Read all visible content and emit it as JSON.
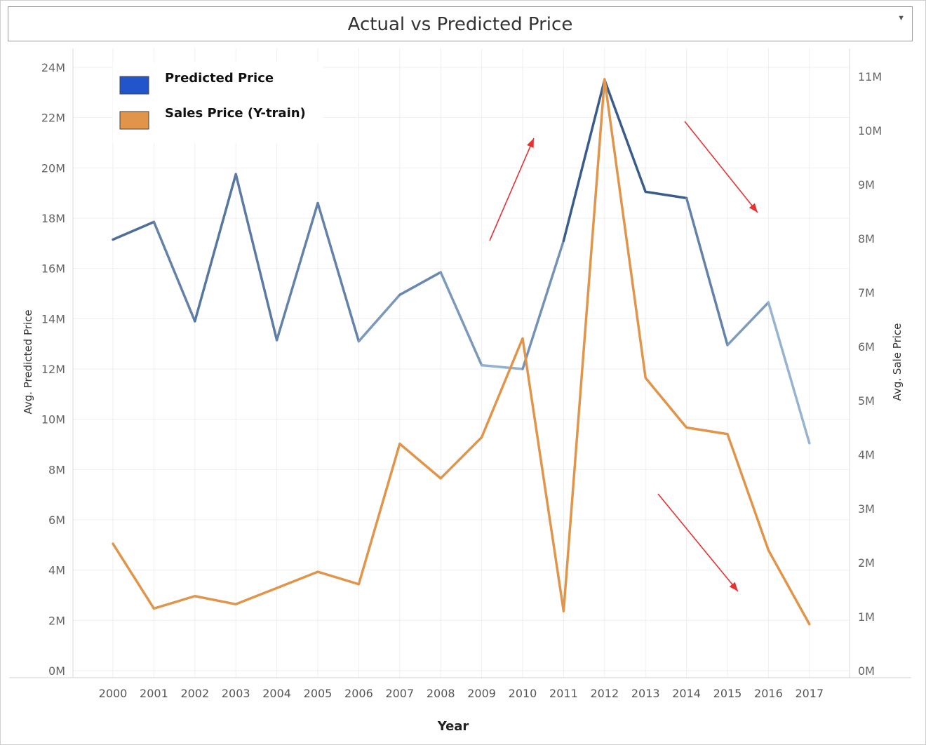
{
  "chart_data": {
    "type": "line",
    "title": "Actual vs Predicted Price",
    "xlabel": "Year",
    "ylabel": "Avg. Predicted Price",
    "y2label": "Avg. Sale Price",
    "categories": [
      "2000",
      "2001",
      "2002",
      "2003",
      "2004",
      "2005",
      "2006",
      "2007",
      "2008",
      "2009",
      "2010",
      "2011",
      "2012",
      "2013",
      "2014",
      "2015",
      "2016",
      "2017"
    ],
    "ylim": [
      0,
      24000000
    ],
    "y2lim": [
      0,
      11000000
    ],
    "yticks": [
      "0M",
      "2M",
      "4M",
      "6M",
      "8M",
      "10M",
      "12M",
      "14M",
      "16M",
      "18M",
      "20M",
      "22M",
      "24M"
    ],
    "y2ticks": [
      "0M",
      "1M",
      "2M",
      "3M",
      "4M",
      "5M",
      "6M",
      "7M",
      "8M",
      "9M",
      "10M",
      "11M"
    ],
    "grid": true,
    "legend_position": "top-left",
    "series": [
      {
        "name": "Predicted Price",
        "axis": "left",
        "color": "#2255cc",
        "values": [
          17150000,
          17850000,
          13900000,
          19750000,
          13150000,
          18600000,
          13100000,
          14950000,
          15850000,
          12150000,
          12000000,
          17100000,
          23500000,
          19050000,
          18800000,
          12950000,
          14650000,
          9050000
        ]
      },
      {
        "name": "Sales Price (Y-train)",
        "axis": "right",
        "color": "#e0954a",
        "values": [
          2350000,
          1150000,
          1380000,
          1230000,
          1530000,
          1830000,
          1600000,
          4200000,
          3560000,
          4320000,
          6150000,
          1100000,
          10950000,
          5420000,
          4500000,
          4380000,
          2230000,
          860000
        ]
      }
    ],
    "annotations": [
      {
        "type": "arrow",
        "color": "#e53232"
      },
      {
        "type": "arrow",
        "color": "#e53232"
      },
      {
        "type": "arrow",
        "color": "#e53232"
      }
    ]
  }
}
